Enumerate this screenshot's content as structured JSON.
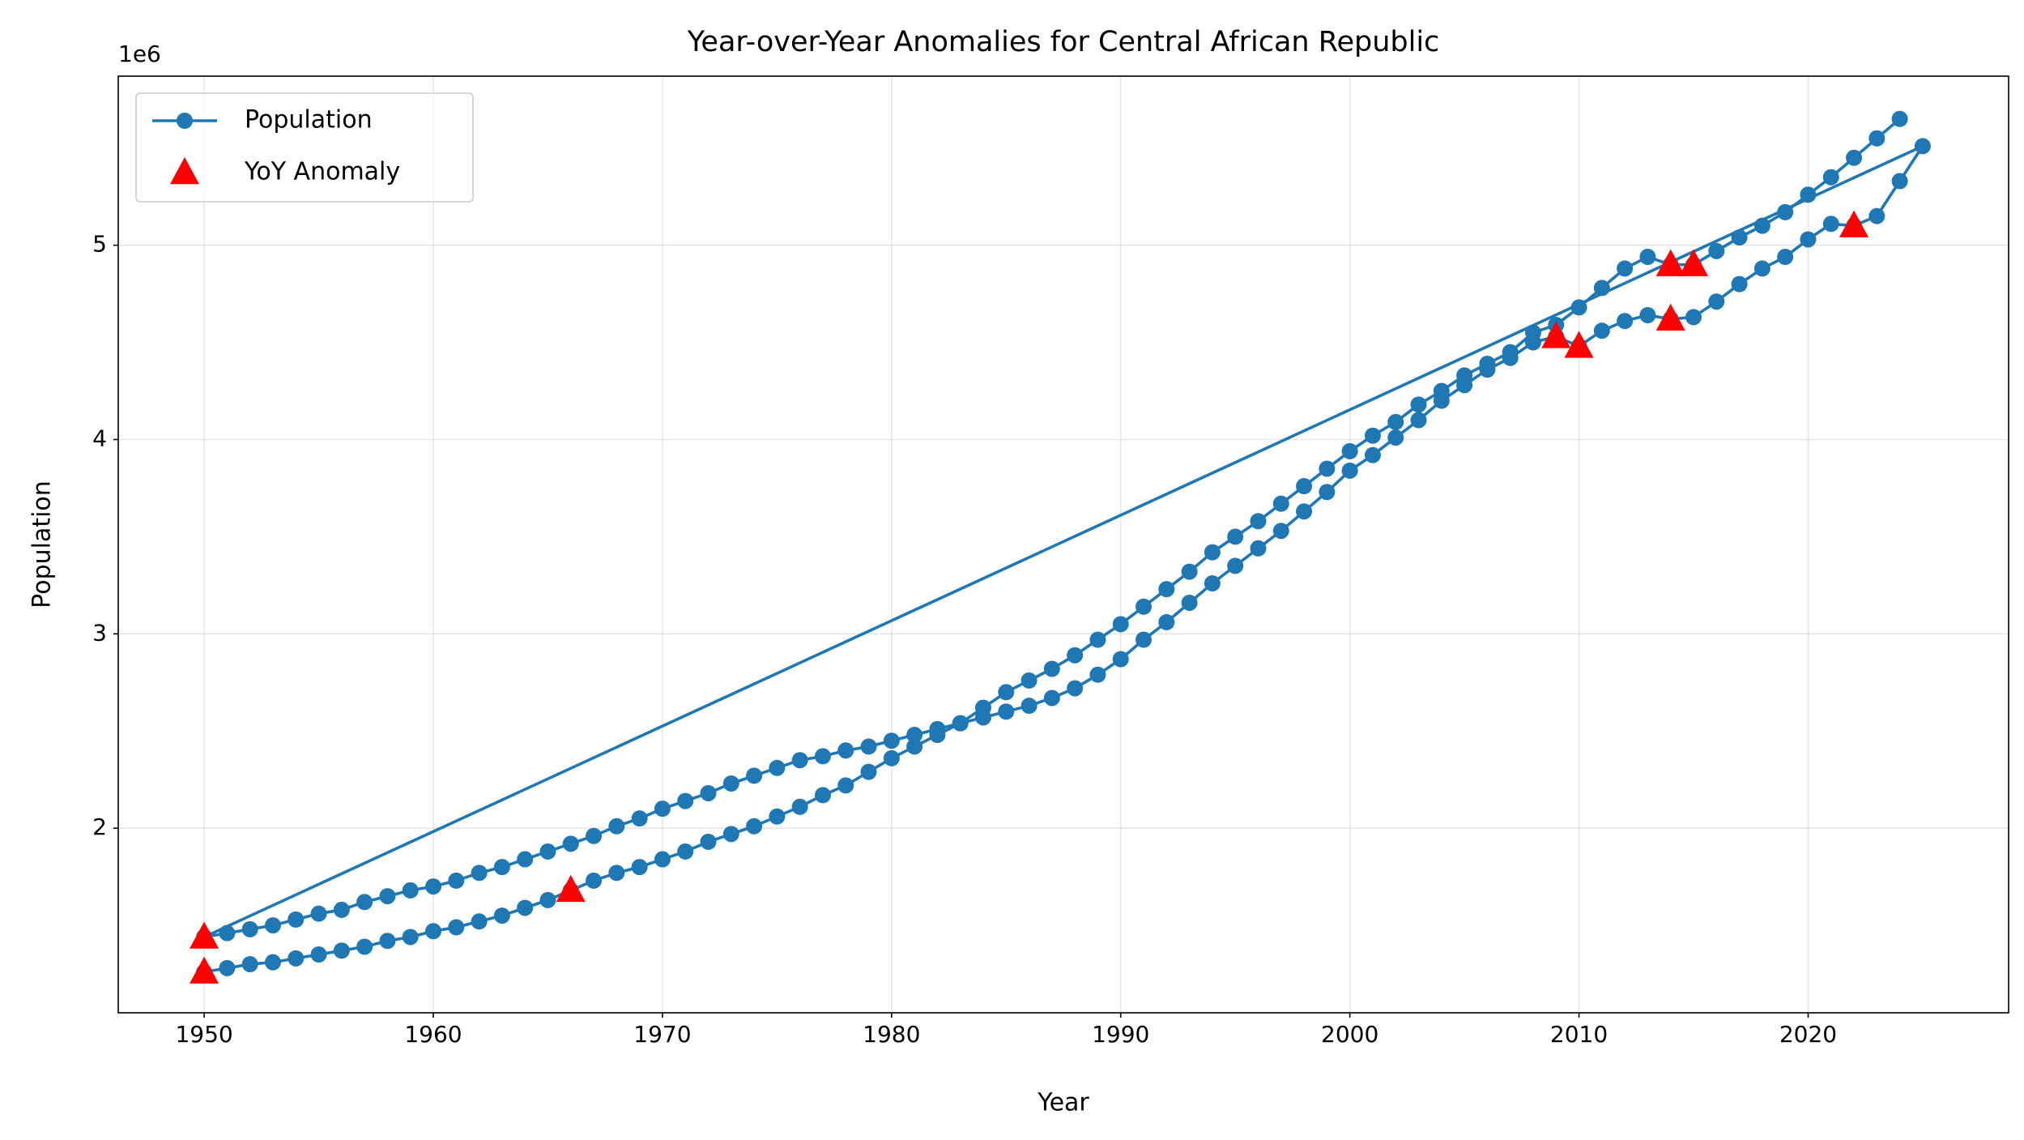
{
  "chart_data": {
    "type": "line",
    "title": "Year-over-Year Anomalies for Central African Republic",
    "x_label": "Year",
    "y_label": "Population",
    "y_offset_label": "1e6",
    "xlim": [
      1946.25,
      2028.75
    ],
    "xticks": [
      1950,
      1960,
      1970,
      1980,
      1990,
      2000,
      2010,
      2020
    ],
    "ylim": [
      1050000,
      5870000
    ],
    "yticks": [
      {
        "value": 2000000,
        "label": "2"
      },
      {
        "value": 3000000,
        "label": "3"
      },
      {
        "value": 4000000,
        "label": "4"
      },
      {
        "value": 5000000,
        "label": "5"
      }
    ],
    "grid": true,
    "legend": "upper left",
    "series": [
      {
        "name": "Population",
        "color": "#1f77b4",
        "marker": "circle",
        "x": [
          1950,
          1951,
          1952,
          1953,
          1954,
          1955,
          1956,
          1957,
          1958,
          1959,
          1960,
          1961,
          1962,
          1963,
          1964,
          1965,
          1966,
          1967,
          1968,
          1969,
          1970,
          1971,
          1972,
          1973,
          1974,
          1975,
          1976,
          1977,
          1978,
          1979,
          1980,
          1981,
          1982,
          1983,
          1984,
          1985,
          1986,
          1987,
          1988,
          1989,
          1990,
          1991,
          1992,
          1993,
          1994,
          1995,
          1996,
          1997,
          1998,
          1999,
          2000,
          2001,
          2002,
          2003,
          2004,
          2005,
          2006,
          2007,
          2008,
          2009,
          2010,
          2011,
          2012,
          2013,
          2014,
          2015,
          2016,
          2017,
          2018,
          2019,
          2020,
          2021,
          2022,
          2023,
          2024,
          2025,
          1950,
          1951,
          1952,
          1953,
          1954,
          1955,
          1956,
          1957,
          1958,
          1959,
          1960,
          1961,
          1962,
          1963,
          1964,
          1965,
          1966,
          1967,
          1968,
          1969,
          1970,
          1971,
          1972,
          1973,
          1974,
          1975,
          1976,
          1977,
          1978,
          1979,
          1980,
          1981,
          1982,
          1983,
          1984,
          1985,
          1986,
          1987,
          1988,
          1989,
          1990,
          1991,
          1992,
          1993,
          1994,
          1995,
          1996,
          1997,
          1998,
          1999,
          2000,
          2001,
          2002,
          2003,
          2004,
          2005,
          2006,
          2007,
          2008,
          2009,
          2010,
          2011,
          2012,
          2013,
          2014,
          2015,
          2016,
          2017,
          2018,
          2019,
          2020,
          2021,
          2022,
          2023,
          2024
        ],
        "values": [
          1260000,
          1280000,
          1300000,
          1310000,
          1330000,
          1350000,
          1370000,
          1390000,
          1420000,
          1440000,
          1470000,
          1490000,
          1520000,
          1550000,
          1590000,
          1630000,
          1680000,
          1730000,
          1770000,
          1800000,
          1840000,
          1880000,
          1930000,
          1970000,
          2010000,
          2060000,
          2110000,
          2170000,
          2220000,
          2290000,
          2360000,
          2420000,
          2480000,
          2540000,
          2570000,
          2600000,
          2630000,
          2670000,
          2720000,
          2790000,
          2870000,
          2970000,
          3060000,
          3160000,
          3260000,
          3350000,
          3440000,
          3530000,
          3630000,
          3730000,
          3840000,
          3920000,
          4010000,
          4100000,
          4200000,
          4280000,
          4360000,
          4420000,
          4500000,
          4530000,
          4480000,
          4560000,
          4610000,
          4640000,
          4620000,
          4630000,
          4710000,
          4800000,
          4880000,
          4940000,
          5030000,
          5110000,
          5100000,
          5150000,
          5330000,
          5510000,
          1440000,
          1460000,
          1480000,
          1500000,
          1530000,
          1560000,
          1580000,
          1620000,
          1650000,
          1680000,
          1700000,
          1730000,
          1770000,
          1800000,
          1840000,
          1880000,
          1920000,
          1960000,
          2010000,
          2050000,
          2100000,
          2140000,
          2180000,
          2230000,
          2270000,
          2310000,
          2350000,
          2370000,
          2400000,
          2420000,
          2450000,
          2480000,
          2510000,
          2540000,
          2620000,
          2700000,
          2760000,
          2820000,
          2890000,
          2970000,
          3050000,
          3140000,
          3230000,
          3320000,
          3420000,
          3500000,
          3580000,
          3670000,
          3760000,
          3850000,
          3940000,
          4020000,
          4090000,
          4180000,
          4250000,
          4330000,
          4390000,
          4450000,
          4550000,
          4590000,
          4680000,
          4780000,
          4880000,
          4940000,
          4900000,
          4900000,
          4970000,
          5040000,
          5100000,
          5170000,
          5260000,
          5350000,
          5450000,
          5550000,
          5650000
        ]
      },
      {
        "name": "YoY Anomaly",
        "color": "#ff0000",
        "marker": "triangle",
        "x": [
          1950,
          1950,
          1966,
          2009,
          2010,
          2014,
          2014,
          2015,
          2022
        ],
        "values": [
          1260000,
          1440000,
          1680000,
          4530000,
          4480000,
          4620000,
          4900000,
          4900000,
          5100000
        ]
      }
    ]
  }
}
